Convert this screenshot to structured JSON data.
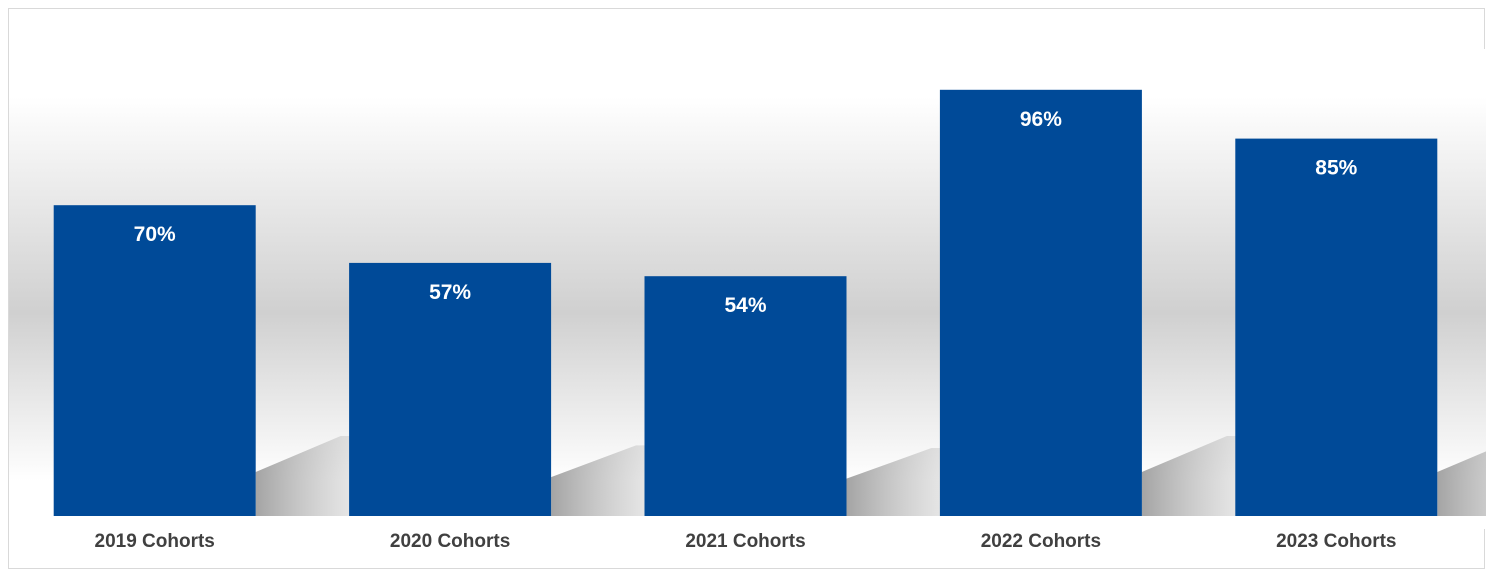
{
  "chart_data": {
    "type": "bar",
    "title": "",
    "xlabel": "",
    "ylabel": "",
    "categories": [
      "2019 Cohorts",
      "2020 Cohorts",
      "2021 Cohorts",
      "2022 Cohorts",
      "2023 Cohorts"
    ],
    "values": [
      70,
      57,
      54,
      96,
      85
    ],
    "value_labels": [
      "70%",
      "57%",
      "54%",
      "96%",
      "85%"
    ],
    "ylim": [
      0,
      100
    ],
    "grid": false,
    "legend": "none",
    "colors": {
      "bar": "#004a98",
      "data_label": "#ffffff",
      "category_label": "#404040",
      "background_gradient": "#d0d0d0"
    }
  }
}
